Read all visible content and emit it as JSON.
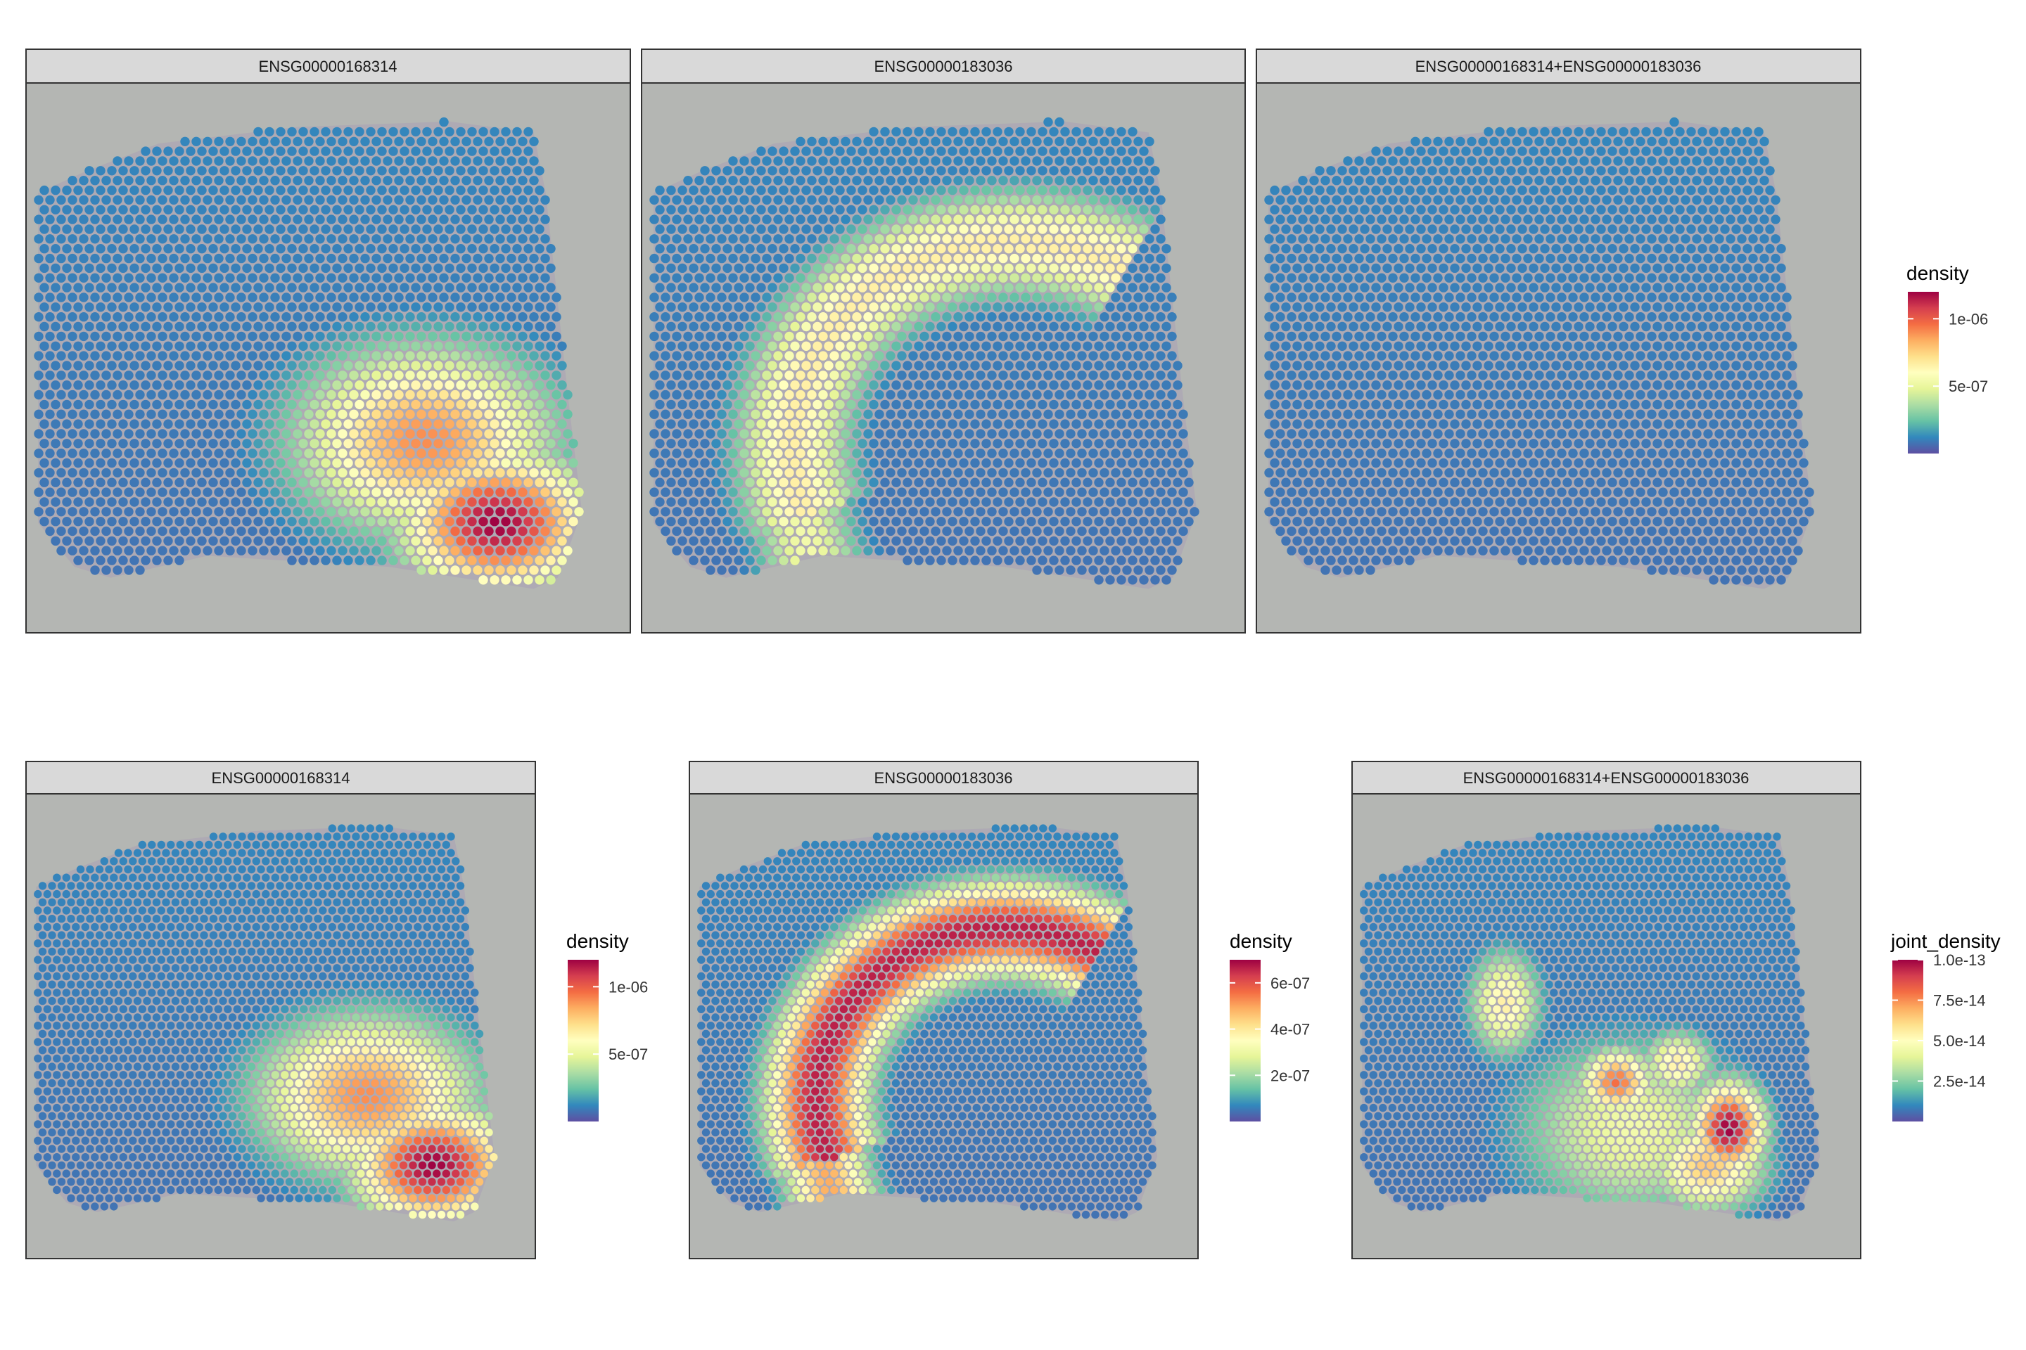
{
  "colors": {
    "background": "#ffffff",
    "strip_fill": "#d9d9d9",
    "strip_border": "#333333",
    "tissue_background": "#b4b6b3",
    "palette": [
      "#5e4fa2",
      "#3288bd",
      "#66c2a5",
      "#abdda4",
      "#e6f598",
      "#ffffbf",
      "#fee08b",
      "#fdae61",
      "#f46d43",
      "#d53e4f",
      "#9e0142"
    ]
  },
  "chart_data": [
    {
      "type": "heatmap",
      "panel": "row1-col1",
      "title": "ENSG00000168314",
      "hotspots": [
        {
          "x": 0.78,
          "y": 0.8,
          "sx": 0.11,
          "sy": 0.09,
          "value": 1.0
        },
        {
          "x": 0.66,
          "y": 0.65,
          "sx": 0.15,
          "sy": 0.12,
          "value": 0.75
        }
      ],
      "legend": {
        "title": "density",
        "min": 0,
        "max": 1.2e-06,
        "ticks": [
          {
            "value": 1e-06,
            "label": "1e-06"
          },
          {
            "value": 5e-07,
            "label": "5e-07"
          }
        ]
      }
    },
    {
      "type": "heatmap",
      "panel": "row1-col2",
      "title": "ENSG00000183036",
      "arcs": [
        {
          "cx": 0.62,
          "cy": 0.66,
          "rx": 0.37,
          "ry": 0.37,
          "a0": 160,
          "a1": 300,
          "w": 0.07,
          "value": 0.55
        },
        {
          "cx": 0.56,
          "cy": 0.72,
          "rx": 0.3,
          "ry": 0.4,
          "a0": 95,
          "a1": 210,
          "w": 0.06,
          "value": 0.45
        }
      ],
      "legend": null
    },
    {
      "type": "heatmap",
      "panel": "row1-col3",
      "title": "ENSG00000168314+ENSG00000183036",
      "hotspots": [],
      "legend": null
    },
    {
      "type": "heatmap",
      "panel": "row2-col1",
      "title": "ENSG00000168314",
      "hotspots": [
        {
          "x": 0.8,
          "y": 0.8,
          "sx": 0.11,
          "sy": 0.09,
          "value": 1.0
        },
        {
          "x": 0.67,
          "y": 0.65,
          "sx": 0.15,
          "sy": 0.12,
          "value": 0.75
        }
      ],
      "legend": {
        "title": "density",
        "min": 0,
        "max": 1.2e-06,
        "ticks": [
          {
            "value": 1e-06,
            "label": "1e-06"
          },
          {
            "value": 5e-07,
            "label": "5e-07"
          }
        ]
      }
    },
    {
      "type": "heatmap",
      "panel": "row2-col2",
      "title": "ENSG00000183036",
      "arcs": [
        {
          "cx": 0.62,
          "cy": 0.66,
          "rx": 0.37,
          "ry": 0.37,
          "a0": 160,
          "a1": 300,
          "w": 0.07,
          "value": 0.95
        },
        {
          "cx": 0.56,
          "cy": 0.72,
          "rx": 0.3,
          "ry": 0.4,
          "a0": 95,
          "a1": 210,
          "w": 0.06,
          "value": 0.7
        }
      ],
      "legend": {
        "title": "density",
        "min": 0,
        "max": 7e-07,
        "ticks": [
          {
            "value": 6e-07,
            "label": "6e-07"
          },
          {
            "value": 4e-07,
            "label": "4e-07"
          },
          {
            "value": 2e-07,
            "label": "2e-07"
          }
        ]
      }
    },
    {
      "type": "heatmap",
      "panel": "row2-col3",
      "title": "ENSG00000168314+ENSG00000183036",
      "hotspots": [
        {
          "x": 0.74,
          "y": 0.72,
          "sx": 0.05,
          "sy": 0.07,
          "value": 1.0
        },
        {
          "x": 0.52,
          "y": 0.62,
          "sx": 0.05,
          "sy": 0.05,
          "value": 0.8
        },
        {
          "x": 0.7,
          "y": 0.8,
          "sx": 0.08,
          "sy": 0.07,
          "value": 0.65
        },
        {
          "x": 0.64,
          "y": 0.58,
          "sx": 0.05,
          "sy": 0.05,
          "value": 0.55
        },
        {
          "x": 0.3,
          "y": 0.45,
          "sx": 0.05,
          "sy": 0.08,
          "value": 0.55
        },
        {
          "x": 0.55,
          "y": 0.72,
          "sx": 0.16,
          "sy": 0.14,
          "value": 0.45
        }
      ],
      "legend": {
        "title": "joint_density",
        "min": 0,
        "max": 1e-13,
        "ticks": [
          {
            "value": 1e-13,
            "label": "1.0e-13"
          },
          {
            "value": 7.5e-14,
            "label": "7.5e-14"
          },
          {
            "value": 5e-14,
            "label": "5.0e-14"
          },
          {
            "value": 2.5e-14,
            "label": "2.5e-14"
          }
        ]
      }
    }
  ]
}
